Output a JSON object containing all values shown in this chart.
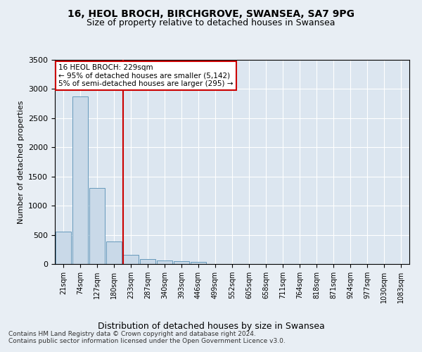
{
  "title1": "16, HEOL BROCH, BIRCHGROVE, SWANSEA, SA7 9PG",
  "title2": "Size of property relative to detached houses in Swansea",
  "xlabel": "Distribution of detached houses by size in Swansea",
  "ylabel": "Number of detached properties",
  "footnote1": "Contains HM Land Registry data © Crown copyright and database right 2024.",
  "footnote2": "Contains public sector information licensed under the Open Government Licence v3.0.",
  "bin_labels": [
    "21sqm",
    "74sqm",
    "127sqm",
    "180sqm",
    "233sqm",
    "287sqm",
    "340sqm",
    "393sqm",
    "446sqm",
    "499sqm",
    "552sqm",
    "605sqm",
    "658sqm",
    "711sqm",
    "764sqm",
    "818sqm",
    "871sqm",
    "924sqm",
    "977sqm",
    "1030sqm",
    "1083sqm"
  ],
  "bar_values": [
    560,
    2870,
    1300,
    390,
    160,
    90,
    60,
    50,
    40,
    0,
    0,
    0,
    0,
    0,
    0,
    0,
    0,
    0,
    0,
    0,
    0
  ],
  "property_line_bin": 3.56,
  "ylim": [
    0,
    3500
  ],
  "yticks": [
    0,
    500,
    1000,
    1500,
    2000,
    2500,
    3000,
    3500
  ],
  "bar_color": "#c9d9e8",
  "bar_edge_color": "#6699bb",
  "line_color": "#cc0000",
  "box_color": "#cc0000",
  "annotation_lines": [
    "16 HEOL BROCH: 229sqm",
    "← 95% of detached houses are smaller (5,142)",
    "5% of semi-detached houses are larger (295) →"
  ],
  "background_color": "#e8eef4",
  "plot_bg_color": "#dce6f0"
}
